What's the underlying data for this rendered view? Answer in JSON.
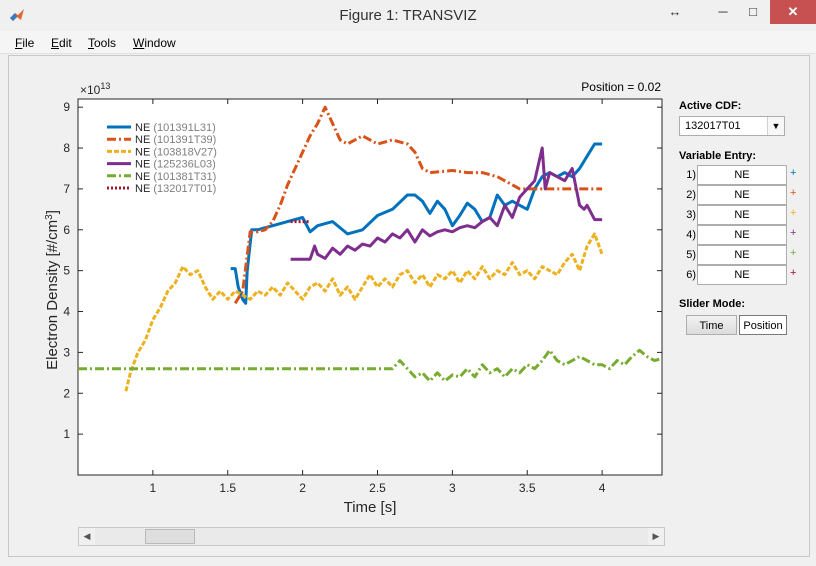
{
  "window": {
    "title": "Figure 1: TRANSVIZ",
    "minimize": "─",
    "maximize": "□",
    "close": "✕",
    "restore": "↔",
    "dock": "↘"
  },
  "menu": [
    {
      "label": "File",
      "accel": "F"
    },
    {
      "label": "Edit",
      "accel": "E"
    },
    {
      "label": "Tools",
      "accel": "T"
    },
    {
      "label": "Window",
      "accel": "W"
    }
  ],
  "plot": {
    "position_text": "Position = 0.02",
    "exponent_text": "×10",
    "exponent_power": "13",
    "xlabel": "Time [s]",
    "ylabel": "Electron Density [#/cm",
    "ylabel_sup": "3",
    "ylabel_end": "]"
  },
  "chart_data": {
    "type": "line",
    "xlim": [
      0.5,
      4.4
    ],
    "ylim": [
      0,
      9.2
    ],
    "x_ticks": [
      1,
      1.5,
      2,
      2.5,
      3,
      3.5,
      4
    ],
    "x_tick_labels": [
      "1",
      "1.5",
      "2",
      "2.5",
      "3",
      "3.5",
      "4"
    ],
    "y_ticks": [
      1,
      2,
      3,
      4,
      5,
      6,
      7,
      8,
      9
    ],
    "y_tick_labels": [
      "1",
      "2",
      "3",
      "4",
      "5",
      "6",
      "7",
      "8",
      "9"
    ],
    "y_multiplier": "1e13",
    "grid": false,
    "legend_position": "top-left",
    "series": [
      {
        "name": "NE",
        "id": "(101391L31)",
        "color": "#0072bd",
        "style": "solid",
        "points": [
          [
            1.52,
            5.05
          ],
          [
            1.55,
            5.05
          ],
          [
            1.57,
            4.6
          ],
          [
            1.6,
            4.3
          ],
          [
            1.62,
            4.2
          ],
          [
            1.63,
            5.0
          ],
          [
            1.66,
            6.0
          ],
          [
            1.7,
            6.0
          ],
          [
            1.75,
            6.05
          ],
          [
            1.8,
            6.1
          ],
          [
            1.9,
            6.2
          ],
          [
            2.0,
            6.3
          ],
          [
            2.05,
            5.95
          ],
          [
            2.1,
            6.1
          ],
          [
            2.2,
            6.2
          ],
          [
            2.3,
            5.9
          ],
          [
            2.4,
            6.0
          ],
          [
            2.5,
            6.35
          ],
          [
            2.6,
            6.5
          ],
          [
            2.7,
            6.85
          ],
          [
            2.75,
            6.85
          ],
          [
            2.8,
            6.7
          ],
          [
            2.85,
            6.4
          ],
          [
            2.9,
            6.7
          ],
          [
            2.95,
            6.5
          ],
          [
            3.0,
            6.1
          ],
          [
            3.05,
            6.35
          ],
          [
            3.1,
            6.65
          ],
          [
            3.15,
            6.5
          ],
          [
            3.2,
            6.2
          ],
          [
            3.25,
            6.3
          ],
          [
            3.3,
            6.85
          ],
          [
            3.35,
            6.6
          ],
          [
            3.4,
            6.7
          ],
          [
            3.45,
            6.6
          ],
          [
            3.5,
            6.5
          ],
          [
            3.55,
            7.0
          ],
          [
            3.6,
            7.3
          ],
          [
            3.65,
            7.4
          ],
          [
            3.7,
            7.3
          ],
          [
            3.75,
            7.4
          ],
          [
            3.8,
            7.3
          ],
          [
            3.85,
            7.5
          ],
          [
            3.9,
            7.8
          ],
          [
            3.95,
            8.1
          ],
          [
            4.0,
            8.1
          ]
        ]
      },
      {
        "name": "NE",
        "id": "(101391T39)",
        "color": "#d95319",
        "style": "dashdot",
        "points": [
          [
            1.55,
            4.2
          ],
          [
            1.6,
            4.5
          ],
          [
            1.65,
            5.95
          ],
          [
            1.7,
            5.95
          ],
          [
            1.75,
            6.0
          ],
          [
            1.8,
            6.2
          ],
          [
            1.85,
            6.6
          ],
          [
            1.9,
            7.1
          ],
          [
            1.95,
            7.5
          ],
          [
            2.0,
            7.9
          ],
          [
            2.05,
            8.3
          ],
          [
            2.1,
            8.6
          ],
          [
            2.15,
            9.0
          ],
          [
            2.2,
            8.6
          ],
          [
            2.25,
            8.2
          ],
          [
            2.3,
            8.1
          ],
          [
            2.4,
            8.3
          ],
          [
            2.5,
            8.1
          ],
          [
            2.6,
            8.2
          ],
          [
            2.7,
            8.1
          ],
          [
            2.75,
            7.9
          ],
          [
            2.8,
            7.5
          ],
          [
            2.85,
            7.4
          ],
          [
            3.0,
            7.45
          ],
          [
            3.1,
            7.4
          ],
          [
            3.2,
            7.4
          ],
          [
            3.3,
            7.3
          ],
          [
            3.4,
            7.1
          ],
          [
            3.45,
            7.0
          ],
          [
            3.5,
            7.0
          ],
          [
            4.0,
            7.0
          ]
        ]
      },
      {
        "name": "NE",
        "id": "(103818V27)",
        "color": "#edb120",
        "style": "dashed",
        "points": [
          [
            0.82,
            2.05
          ],
          [
            0.85,
            2.5
          ],
          [
            0.9,
            3.0
          ],
          [
            0.95,
            3.3
          ],
          [
            1.0,
            3.8
          ],
          [
            1.05,
            4.1
          ],
          [
            1.1,
            4.5
          ],
          [
            1.15,
            4.7
          ],
          [
            1.2,
            5.1
          ],
          [
            1.25,
            4.9
          ],
          [
            1.3,
            5.0
          ],
          [
            1.35,
            4.6
          ],
          [
            1.4,
            4.3
          ],
          [
            1.45,
            4.5
          ],
          [
            1.5,
            4.3
          ],
          [
            1.55,
            4.5
          ],
          [
            1.6,
            4.4
          ],
          [
            1.65,
            4.3
          ],
          [
            1.7,
            4.5
          ],
          [
            1.75,
            4.4
          ],
          [
            1.8,
            4.6
          ],
          [
            1.85,
            4.4
          ],
          [
            1.9,
            4.7
          ],
          [
            1.95,
            4.5
          ],
          [
            2.0,
            4.3
          ],
          [
            2.05,
            4.6
          ],
          [
            2.1,
            4.7
          ],
          [
            2.15,
            4.5
          ],
          [
            2.2,
            4.8
          ],
          [
            2.25,
            4.4
          ],
          [
            2.3,
            4.6
          ],
          [
            2.35,
            4.3
          ],
          [
            2.4,
            4.6
          ],
          [
            2.45,
            4.9
          ],
          [
            2.5,
            4.6
          ],
          [
            2.55,
            4.8
          ],
          [
            2.6,
            4.6
          ],
          [
            2.65,
            4.9
          ],
          [
            2.7,
            5.0
          ],
          [
            2.75,
            4.7
          ],
          [
            2.8,
            4.9
          ],
          [
            2.85,
            4.6
          ],
          [
            2.9,
            4.9
          ],
          [
            2.95,
            4.8
          ],
          [
            3.0,
            5.0
          ],
          [
            3.05,
            4.7
          ],
          [
            3.1,
            5.0
          ],
          [
            3.15,
            4.8
          ],
          [
            3.2,
            5.1
          ],
          [
            3.25,
            4.8
          ],
          [
            3.3,
            5.0
          ],
          [
            3.35,
            4.9
          ],
          [
            3.4,
            5.2
          ],
          [
            3.45,
            4.9
          ],
          [
            3.5,
            5.0
          ],
          [
            3.55,
            4.8
          ],
          [
            3.6,
            5.1
          ],
          [
            3.65,
            5.0
          ],
          [
            3.7,
            4.9
          ],
          [
            3.75,
            5.2
          ],
          [
            3.8,
            5.4
          ],
          [
            3.85,
            5.0
          ],
          [
            3.9,
            5.6
          ],
          [
            3.95,
            5.9
          ],
          [
            4.0,
            5.4
          ]
        ]
      },
      {
        "name": "NE",
        "id": "(125236L03)",
        "color": "#7e2f8e",
        "style": "solid",
        "points": [
          [
            1.92,
            5.28
          ],
          [
            2.05,
            5.28
          ],
          [
            2.08,
            5.6
          ],
          [
            2.1,
            5.4
          ],
          [
            2.15,
            5.3
          ],
          [
            2.2,
            5.55
          ],
          [
            2.25,
            5.4
          ],
          [
            2.3,
            5.6
          ],
          [
            2.35,
            5.5
          ],
          [
            2.4,
            5.65
          ],
          [
            2.45,
            5.6
          ],
          [
            2.5,
            5.8
          ],
          [
            2.55,
            5.7
          ],
          [
            2.6,
            5.9
          ],
          [
            2.65,
            5.8
          ],
          [
            2.7,
            6.0
          ],
          [
            2.75,
            5.7
          ],
          [
            2.8,
            6.0
          ],
          [
            2.85,
            5.85
          ],
          [
            2.9,
            5.95
          ],
          [
            2.95,
            6.0
          ],
          [
            3.0,
            5.95
          ],
          [
            3.05,
            6.05
          ],
          [
            3.1,
            6.1
          ],
          [
            3.15,
            6.05
          ],
          [
            3.2,
            6.2
          ],
          [
            3.25,
            6.3
          ],
          [
            3.3,
            6.1
          ],
          [
            3.35,
            6.6
          ],
          [
            3.4,
            6.3
          ],
          [
            3.45,
            6.8
          ],
          [
            3.5,
            7.0
          ],
          [
            3.55,
            7.2
          ],
          [
            3.6,
            8.0
          ],
          [
            3.62,
            7.0
          ],
          [
            3.65,
            7.4
          ],
          [
            3.7,
            7.3
          ],
          [
            3.75,
            7.2
          ],
          [
            3.8,
            7.5
          ],
          [
            3.85,
            6.6
          ],
          [
            3.88,
            6.5
          ],
          [
            3.9,
            6.6
          ],
          [
            3.95,
            6.25
          ],
          [
            4.0,
            6.25
          ]
        ]
      },
      {
        "name": "NE",
        "id": "(101381T31)",
        "color": "#77ac30",
        "style": "dashdot",
        "points": [
          [
            0.5,
            2.6
          ],
          [
            2.55,
            2.6
          ],
          [
            2.6,
            2.6
          ],
          [
            2.65,
            2.8
          ],
          [
            2.7,
            2.6
          ],
          [
            2.75,
            2.4
          ],
          [
            2.8,
            2.5
          ],
          [
            2.85,
            2.3
          ],
          [
            2.9,
            2.5
          ],
          [
            2.95,
            2.3
          ],
          [
            3.0,
            2.45
          ],
          [
            3.05,
            2.4
          ],
          [
            3.1,
            2.6
          ],
          [
            3.15,
            2.4
          ],
          [
            3.2,
            2.7
          ],
          [
            3.25,
            2.5
          ],
          [
            3.3,
            2.6
          ],
          [
            3.35,
            2.4
          ],
          [
            3.4,
            2.6
          ],
          [
            3.45,
            2.5
          ],
          [
            3.5,
            2.7
          ],
          [
            3.55,
            2.6
          ],
          [
            3.6,
            2.8
          ],
          [
            3.65,
            3.05
          ],
          [
            3.7,
            2.8
          ],
          [
            3.75,
            2.7
          ],
          [
            3.8,
            2.8
          ],
          [
            3.85,
            2.9
          ],
          [
            3.9,
            2.8
          ],
          [
            3.95,
            2.7
          ],
          [
            4.0,
            2.7
          ],
          [
            4.05,
            2.6
          ],
          [
            4.1,
            2.8
          ],
          [
            4.15,
            2.7
          ],
          [
            4.2,
            2.9
          ],
          [
            4.25,
            3.05
          ],
          [
            4.3,
            2.9
          ],
          [
            4.35,
            2.8
          ],
          [
            4.4,
            2.85
          ]
        ]
      },
      {
        "name": "NE",
        "id": "(132017T01)",
        "color": "#a2142f",
        "style": "dotted",
        "points": [
          [
            1.92,
            6.2
          ],
          [
            2.05,
            6.2
          ]
        ]
      }
    ]
  },
  "sidebar": {
    "active_cdf_label": "Active CDF:",
    "active_cdf_value": "132017T01",
    "variable_entry_label": "Variable Entry:",
    "variables": [
      {
        "num": "1)",
        "value": "NE",
        "color": "#0072bd"
      },
      {
        "num": "2)",
        "value": "NE",
        "color": "#d95319"
      },
      {
        "num": "3)",
        "value": "NE",
        "color": "#edb120"
      },
      {
        "num": "4)",
        "value": "NE",
        "color": "#7e2f8e"
      },
      {
        "num": "5)",
        "value": "NE",
        "color": "#77ac30"
      },
      {
        "num": "6)",
        "value": "NE",
        "color": "#a2142f"
      }
    ],
    "plus": "+",
    "slider_mode_label": "Slider Mode:",
    "time_button": "Time",
    "position_button": "Position"
  },
  "scrollbar": {
    "left_arrow": "◀",
    "right_arrow": "▶",
    "value": 0.02
  }
}
